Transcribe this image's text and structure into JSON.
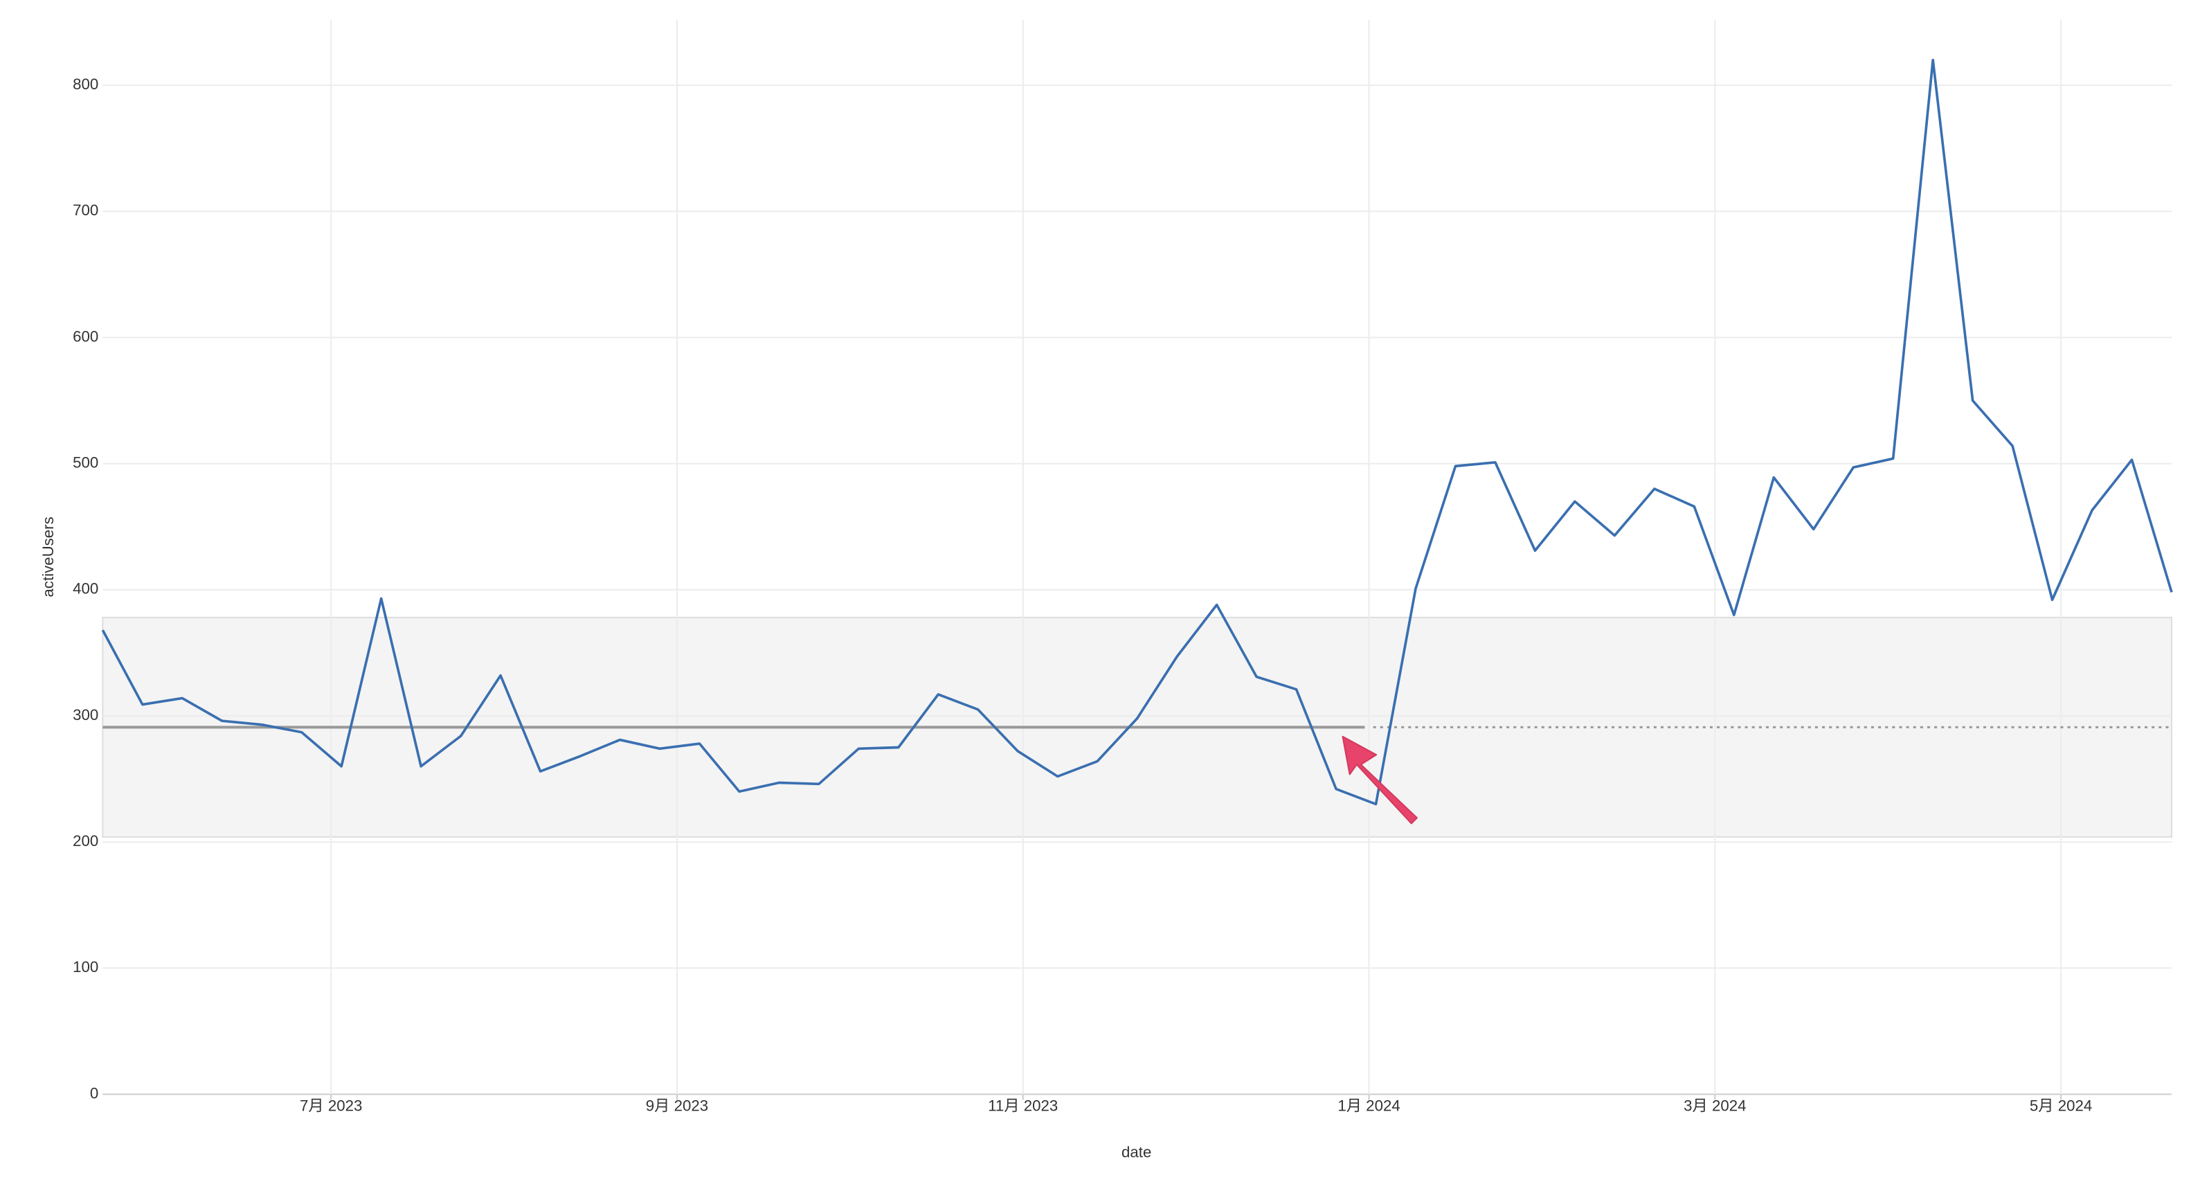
{
  "chart_data": {
    "type": "line",
    "x_label": "date",
    "y_label": "activeUsers",
    "x": [
      4.68,
      4.91,
      5.14,
      5.37,
      5.6,
      5.83,
      6.06,
      6.29,
      6.52,
      6.75,
      6.98,
      7.21,
      7.44,
      7.67,
      7.9,
      8.13,
      8.36,
      8.59,
      8.82,
      9.05,
      9.28,
      9.51,
      9.74,
      9.97,
      10.2,
      10.43,
      10.66,
      10.89,
      11.12,
      11.35,
      11.58,
      11.81,
      12.04,
      12.27,
      12.5,
      12.73,
      12.96,
      13.19,
      13.42,
      13.65,
      13.88,
      14.11,
      14.34,
      14.57,
      14.8,
      15.03,
      15.26,
      15.49,
      15.72,
      15.95,
      16.18,
      16.41,
      16.64
    ],
    "series": [
      {
        "name": "activeUsers",
        "color": "#3a6fb0",
        "values": [
          368,
          309,
          314,
          296,
          293,
          287,
          260,
          393,
          260,
          284,
          332,
          256,
          268,
          281,
          274,
          278,
          240,
          247,
          246,
          274,
          275,
          317,
          305,
          272,
          252,
          264,
          298,
          347,
          388,
          331,
          321,
          242,
          230,
          401,
          498,
          501,
          431,
          470,
          443,
          480,
          466,
          380,
          489,
          448,
          497,
          504,
          820,
          550,
          514,
          392,
          463,
          503,
          398
        ]
      }
    ],
    "xlim": [
      4.68,
      16.64
    ],
    "xticks": [
      {
        "value": 6,
        "label": "7月 2023"
      },
      {
        "value": 8,
        "label": "9月 2023"
      },
      {
        "value": 10,
        "label": "11月 2023"
      },
      {
        "value": 12,
        "label": "1月 2024"
      },
      {
        "value": 14,
        "label": "3月 2024"
      },
      {
        "value": 16,
        "label": "5月 2024"
      }
    ],
    "ylim": [
      0,
      852
    ],
    "yticks": [
      0,
      100,
      200,
      300,
      400,
      500,
      600,
      700,
      800
    ],
    "grid": true,
    "reference": {
      "value": 291,
      "band": [
        204,
        378
      ],
      "split_x": 12.0,
      "color": "#999999",
      "band_color": "#f4f4f4"
    }
  }
}
